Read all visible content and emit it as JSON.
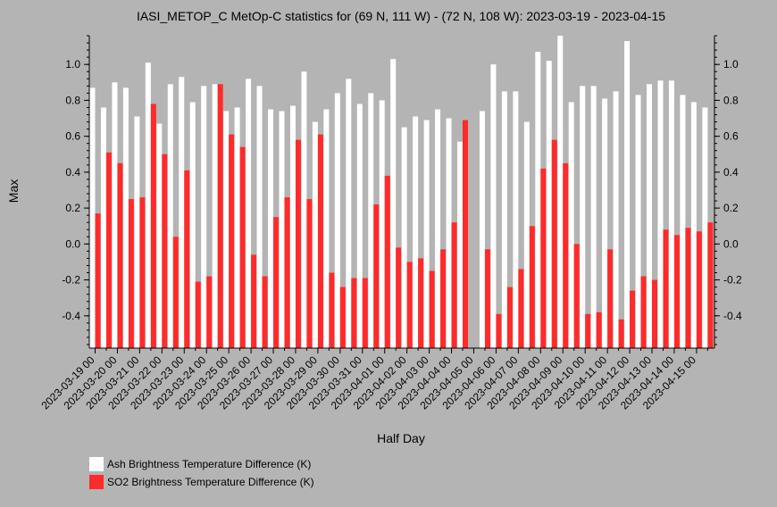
{
  "colors": {
    "background": "#b4b4b4",
    "ash": "#ffffff",
    "so2": "#ff2a2a"
  },
  "chart_data": {
    "type": "bar",
    "title": "IASI_METOP_C MetOp-C statistics for (69 N, 111 W) - (72 N, 108 W): 2023-03-19 - 2023-04-15",
    "xlabel": "Half Day",
    "ylabel": "Max",
    "ylim": [
      -0.58,
      1.16
    ],
    "yticks": [
      -0.4,
      -0.2,
      0.0,
      0.2,
      0.4,
      0.6,
      0.8,
      1.0
    ],
    "ytick_labels": [
      "-0.4",
      "-0.2",
      "0.0",
      "0.2",
      "0.4",
      "0.6",
      "0.8",
      "1.0"
    ],
    "grid": false,
    "legend_position": "bottom-left",
    "categories": [
      "2023-03-19 00",
      "2023-03-19 12",
      "2023-03-20 00",
      "2023-03-20 12",
      "2023-03-21 00",
      "2023-03-21 12",
      "2023-03-22 00",
      "2023-03-22 12",
      "2023-03-23 00",
      "2023-03-23 12",
      "2023-03-24 00",
      "2023-03-24 12",
      "2023-03-25 00",
      "2023-03-25 12",
      "2023-03-26 00",
      "2023-03-26 12",
      "2023-03-27 00",
      "2023-03-27 12",
      "2023-03-28 00",
      "2023-03-28 12",
      "2023-03-29 00",
      "2023-03-29 12",
      "2023-03-30 00",
      "2023-03-30 12",
      "2023-03-31 00",
      "2023-03-31 12",
      "2023-04-01 00",
      "2023-04-01 12",
      "2023-04-02 00",
      "2023-04-02 12",
      "2023-04-03 00",
      "2023-04-03 12",
      "2023-04-04 00",
      "2023-04-04 12",
      "2023-04-05 00",
      "2023-04-05 12",
      "2023-04-06 00",
      "2023-04-06 12",
      "2023-04-07 00",
      "2023-04-07 12",
      "2023-04-08 00",
      "2023-04-08 12",
      "2023-04-09 00",
      "2023-04-09 12",
      "2023-04-10 00",
      "2023-04-10 12",
      "2023-04-11 00",
      "2023-04-11 12",
      "2023-04-12 00",
      "2023-04-12 12",
      "2023-04-13 00",
      "2023-04-13 12",
      "2023-04-14 00",
      "2023-04-14 12",
      "2023-04-15 00",
      "2023-04-15 12"
    ],
    "xtick_labels": [
      "2023-03-19 00",
      "2023-03-20 00",
      "2023-03-21 00",
      "2023-03-22 00",
      "2023-03-23 00",
      "2023-03-24 00",
      "2023-03-25 00",
      "2023-03-26 00",
      "2023-03-27 00",
      "2023-03-28 00",
      "2023-03-29 00",
      "2023-03-30 00",
      "2023-03-31 00",
      "2023-04-01 00",
      "2023-04-02 00",
      "2023-04-03 00",
      "2023-04-04 00",
      "2023-04-05 00",
      "2023-04-06 00",
      "2023-04-07 00",
      "2023-04-08 00",
      "2023-04-09 00",
      "2023-04-10 00",
      "2023-04-11 00",
      "2023-04-12 00",
      "2023-04-13 00",
      "2023-04-14 00",
      "2023-04-15 00"
    ],
    "series": [
      {
        "name": "Ash Brightness Temperature Difference (K)",
        "color": "#ffffff",
        "values": [
          0.87,
          0.76,
          0.9,
          0.87,
          0.71,
          1.01,
          0.67,
          0.89,
          0.93,
          0.79,
          0.88,
          0.89,
          0.74,
          0.76,
          0.92,
          0.88,
          0.75,
          0.74,
          0.77,
          0.96,
          0.68,
          0.75,
          0.84,
          0.92,
          0.78,
          0.84,
          0.8,
          1.03,
          0.65,
          0.71,
          0.69,
          0.75,
          0.7,
          0.57,
          null,
          0.74,
          1.0,
          0.85,
          0.85,
          0.68,
          1.07,
          1.02,
          1.16,
          0.79,
          0.88,
          0.88,
          0.81,
          0.85,
          1.13,
          0.83,
          0.89,
          0.91,
          0.91,
          0.83,
          0.79,
          0.76
        ]
      },
      {
        "name": "SO2 Brightness Temperature Difference (K)",
        "color": "#ff2a2a",
        "values": [
          0.17,
          0.51,
          0.45,
          0.25,
          0.26,
          0.78,
          0.5,
          0.04,
          0.41,
          -0.21,
          -0.18,
          0.89,
          0.61,
          0.54,
          -0.06,
          -0.18,
          0.15,
          0.26,
          0.58,
          0.25,
          0.61,
          -0.16,
          -0.24,
          -0.19,
          -0.19,
          0.22,
          0.38,
          -0.02,
          -0.1,
          -0.08,
          -0.15,
          -0.03,
          0.12,
          0.69,
          null,
          -0.03,
          -0.39,
          -0.24,
          -0.14,
          0.1,
          0.42,
          0.58,
          0.45,
          0.0,
          -0.39,
          -0.38,
          -0.03,
          -0.42,
          -0.26,
          -0.18,
          -0.2,
          0.08,
          0.05,
          0.09,
          0.07,
          0.12
        ]
      }
    ]
  }
}
